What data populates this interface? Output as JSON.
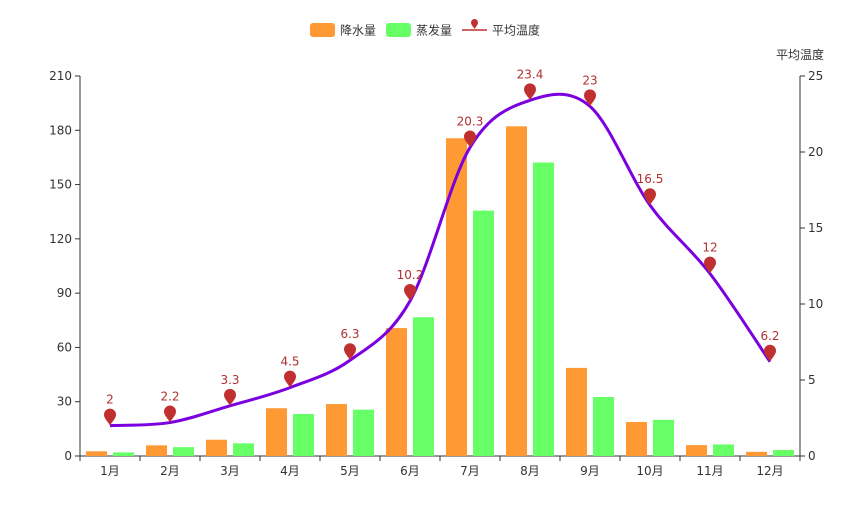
{
  "chart_data": {
    "type": "bar",
    "categories": [
      "1月",
      "2月",
      "3月",
      "4月",
      "5月",
      "6月",
      "7月",
      "8月",
      "9月",
      "10月",
      "11月",
      "12月"
    ],
    "series": [
      {
        "name": "降水量",
        "kind": "bar",
        "axis": "left",
        "color": "#ff9933",
        "values": [
          2.6,
          5.9,
          9.0,
          26.4,
          28.7,
          70.7,
          175.6,
          182.2,
          48.7,
          18.8,
          6.0,
          2.3
        ]
      },
      {
        "name": "蒸发量",
        "kind": "bar",
        "axis": "left",
        "color": "#66ff66",
        "values": [
          2.0,
          4.9,
          7.0,
          23.2,
          25.6,
          76.7,
          135.6,
          162.2,
          32.6,
          20.0,
          6.4,
          3.3
        ]
      },
      {
        "name": "平均温度",
        "kind": "line",
        "axis": "right",
        "color": "#7b00e0",
        "marker_color": "#c03030",
        "values": [
          2.0,
          2.2,
          3.3,
          4.5,
          6.3,
          10.2,
          20.3,
          23.4,
          23.0,
          16.5,
          12.0,
          6.2
        ]
      }
    ],
    "y_left": {
      "min": 0,
      "max": 210,
      "ticks": [
        0,
        30,
        60,
        90,
        120,
        150,
        180,
        210
      ]
    },
    "y_right": {
      "min": 0,
      "max": 25,
      "ticks": [
        0,
        5,
        10,
        15,
        20,
        25
      ],
      "name": "平均温度"
    },
    "legend": "top-center",
    "grid": false
  }
}
